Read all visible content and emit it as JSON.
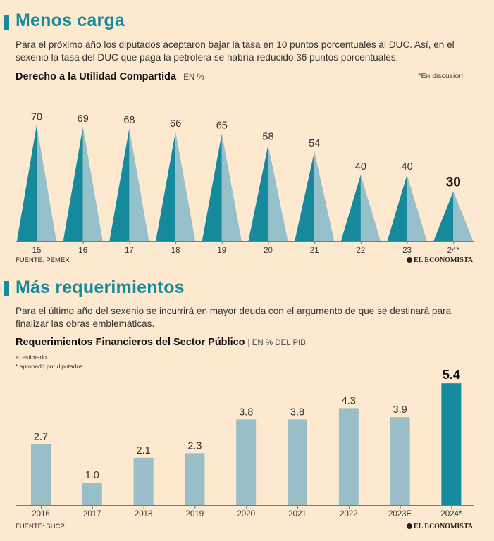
{
  "section1": {
    "title": "Menos carga",
    "lead": "Para el próximo año los diputados aceptaron bajar la tasa en 10 puntos porcentuales al DUC. Así, en el sexenio la tasa del DUC que paga la petrolera se habría reducido 36 puntos porcentuales.",
    "chart_title": "Derecho a la Utilidad Compartida",
    "chart_unit": "| EN %",
    "note": "*En discusión",
    "source": "FUENTE: PEMEX",
    "brand": "EL ECONOMISTA"
  },
  "section2": {
    "title": "Más requerimientos",
    "lead": "Para el último año del sexenio se incurrirá en mayor deuda con el argumento de que se destinará para finalizar las obras emblemáticas.",
    "chart_title": "Requerimientos Financieros del Sector Público",
    "chart_unit": "| EN % DEL PIB",
    "legend_e": "e: estimado",
    "legend_star": "* aprobado por diputados",
    "source": "FUENTE: SHCP",
    "brand": "EL ECONOMISTA"
  },
  "colors": {
    "teal_dark": "#148a9c",
    "teal_light": "#96c1ca",
    "bar_light": "#98bec8",
    "bar_highlight": "#148a9c",
    "background": "#fde9cf"
  },
  "chart_data": [
    {
      "type": "bar",
      "title": "Derecho a la Utilidad Compartida",
      "ylabel": "EN %",
      "categories": [
        "15",
        "16",
        "17",
        "18",
        "19",
        "20",
        "21",
        "22",
        "23",
        "24*"
      ],
      "values": [
        70,
        69,
        68,
        66,
        65,
        58,
        54,
        40,
        40,
        30
      ],
      "labels": [
        "70",
        "69",
        "68",
        "66",
        "65",
        "58",
        "54",
        "40",
        "40",
        "30"
      ],
      "highlight_index": 9,
      "ylim": [
        0,
        80
      ]
    },
    {
      "type": "bar",
      "title": "Requerimientos Financieros del Sector Público",
      "ylabel": "EN % DEL PIB",
      "categories": [
        "2016",
        "2017",
        "2018",
        "2019",
        "2020",
        "2021",
        "2022",
        "2023E",
        "2024*"
      ],
      "values": [
        2.7,
        1.0,
        2.1,
        2.3,
        3.8,
        3.8,
        4.3,
        3.9,
        5.4
      ],
      "labels": [
        "2.7",
        "1.0",
        "2.1",
        "2.3",
        "3.8",
        "3.8",
        "4.3",
        "3.9",
        "5.4"
      ],
      "highlight_index": 8,
      "ylim": [
        0,
        6
      ]
    }
  ]
}
